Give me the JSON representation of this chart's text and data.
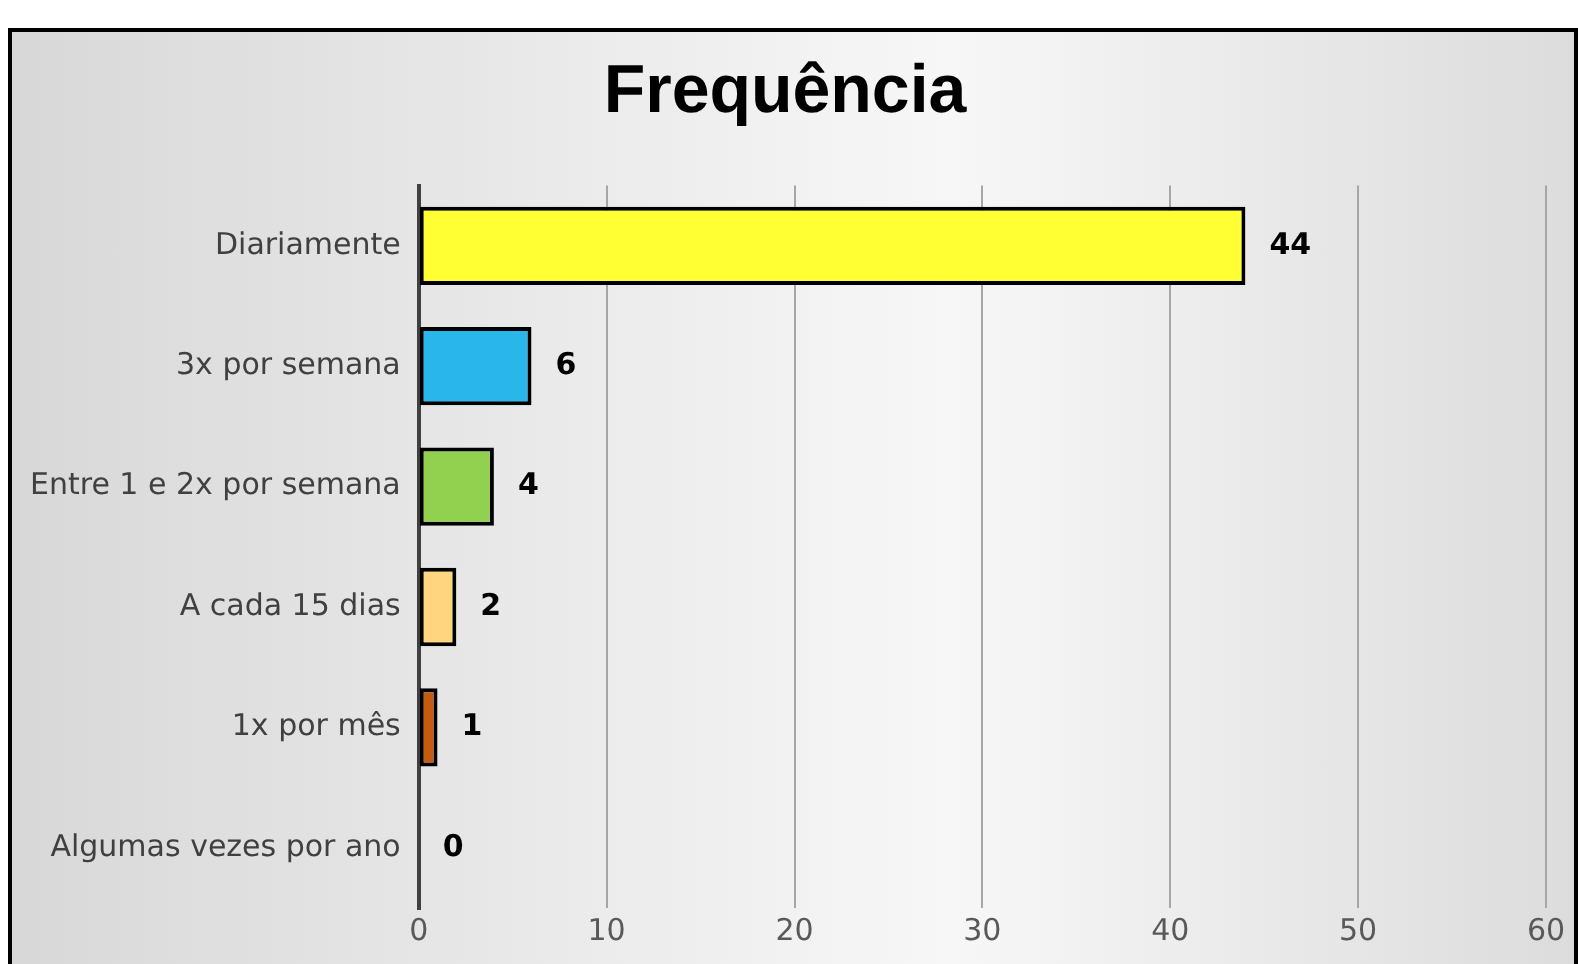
{
  "chart_data": {
    "type": "bar",
    "orientation": "horizontal",
    "title": "Frequência",
    "categories": [
      "Diariamente",
      "3x por semana",
      "Entre 1 e 2x por semana",
      "A cada 15 dias",
      "1x por mês",
      "Algumas vezes por ano"
    ],
    "values": [
      44,
      6,
      4,
      2,
      1,
      0
    ],
    "colors": [
      "#ffff33",
      "#29b6ea",
      "#92d050",
      "#ffd580",
      "#c55a11",
      "#a5a5a5"
    ],
    "xlim": [
      0,
      60
    ],
    "xticks": [
      0,
      10,
      20,
      30,
      40,
      50,
      60
    ],
    "grid": "x",
    "data_labels": true,
    "legend": false
  }
}
